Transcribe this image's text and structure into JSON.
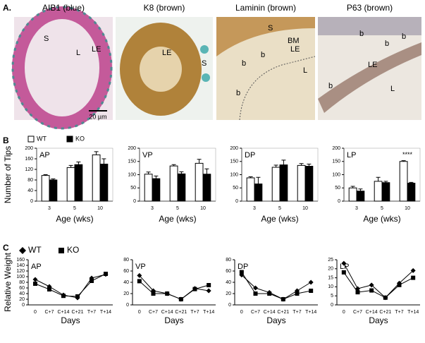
{
  "figure": {
    "panels": [
      "A.",
      "B",
      "C"
    ]
  },
  "panel_a": {
    "images": [
      {
        "title": "AIB1 (blue)",
        "labels": [
          "S",
          "L",
          "LE"
        ]
      },
      {
        "title": "K8 (brown)",
        "labels": [
          "LE",
          "S"
        ]
      },
      {
        "title": "Laminin (brown)",
        "labels": [
          "S",
          "BM",
          "LE",
          "b",
          "b",
          "b",
          "L"
        ]
      },
      {
        "title": "P63 (brown)",
        "labels": [
          "b",
          "b",
          "b",
          "LE",
          "L",
          "b"
        ]
      }
    ],
    "scale_bar": "20 µm"
  },
  "chart_data": [
    {
      "type": "bar",
      "title": "AP",
      "categories": [
        "3",
        "5",
        "10"
      ],
      "ylabel": "Number of Tips",
      "xlabel": "Age (wks)",
      "legend": "top",
      "ylim": [
        0,
        200
      ],
      "yticks": [
        0,
        40,
        80,
        120,
        160,
        200
      ],
      "series": [
        {
          "name": "WT",
          "color": "#ffffff",
          "values": [
            97,
            127,
            175
          ],
          "errors": [
            3,
            8,
            12
          ]
        },
        {
          "name": "KO",
          "color": "#000000",
          "values": [
            80,
            138,
            140
          ],
          "errors": [
            4,
            10,
            20
          ]
        }
      ]
    },
    {
      "type": "bar",
      "title": "VP",
      "categories": [
        "3",
        "5",
        "10"
      ],
      "xlabel": "Age (wks)",
      "ylim": [
        0,
        200
      ],
      "yticks": [
        0,
        50,
        100,
        150,
        200
      ],
      "series": [
        {
          "color": "#ffffff",
          "values": [
            102,
            133,
            143
          ],
          "errors": [
            8,
            5,
            15
          ]
        },
        {
          "color": "#000000",
          "values": [
            85,
            103,
            102
          ],
          "errors": [
            10,
            8,
            20
          ]
        }
      ]
    },
    {
      "type": "bar",
      "title": "DP",
      "categories": [
        "3",
        "5",
        "10"
      ],
      "xlabel": "Age (wks)",
      "ylim": [
        0,
        200
      ],
      "yticks": [
        0,
        50,
        100,
        150,
        200
      ],
      "series": [
        {
          "color": "#ffffff",
          "values": [
            88,
            128,
            135
          ],
          "errors": [
            4,
            8,
            7
          ]
        },
        {
          "color": "#000000",
          "values": [
            65,
            137,
            132
          ],
          "errors": [
            25,
            18,
            8
          ]
        }
      ]
    },
    {
      "type": "bar",
      "title": "LP",
      "categories": [
        "3",
        "5",
        "10"
      ],
      "xlabel": "Age (wks)",
      "ylim": [
        0,
        200
      ],
      "yticks": [
        0,
        50,
        100,
        150,
        200
      ],
      "annotation": "****",
      "series": [
        {
          "color": "#ffffff",
          "values": [
            50,
            75,
            150
          ],
          "errors": [
            6,
            15,
            3
          ]
        },
        {
          "color": "#000000",
          "values": [
            38,
            70,
            68
          ],
          "errors": [
            8,
            5,
            3
          ]
        }
      ]
    },
    {
      "type": "line",
      "title": "AP",
      "categories": [
        "0",
        "C+7",
        "C+14",
        "C+21",
        "T+7",
        "T+14"
      ],
      "ylabel": "Relative Weight",
      "xlabel": "Days",
      "legend": "top",
      "ylim": [
        0,
        160
      ],
      "yticks": [
        0,
        20,
        40,
        60,
        80,
        100,
        120,
        140,
        160
      ],
      "series": [
        {
          "name": "WT",
          "color": "#000000",
          "marker": "diamond",
          "values": [
            90,
            65,
            35,
            25,
            95,
            108
          ]
        },
        {
          "name": "KO",
          "color": "#000000",
          "marker": "square",
          "values": [
            75,
            55,
            32,
            30,
            85,
            110
          ]
        }
      ]
    },
    {
      "type": "line",
      "title": "VP",
      "categories": [
        "0",
        "C+7",
        "C+14",
        "C+21",
        "T+7",
        "T+14"
      ],
      "xlabel": "Days",
      "ylim": [
        0,
        80
      ],
      "yticks": [
        0,
        20,
        40,
        60,
        80
      ],
      "series": [
        {
          "color": "#000000",
          "marker": "diamond",
          "values": [
            52,
            25,
            20,
            10,
            29,
            25
          ]
        },
        {
          "color": "#000000",
          "marker": "square",
          "values": [
            42,
            20,
            20,
            10,
            28,
            35
          ]
        }
      ]
    },
    {
      "type": "line",
      "title": "DP",
      "categories": [
        "0",
        "C+7",
        "C+14",
        "C+21",
        "T+7",
        "T+14"
      ],
      "xlabel": "Days",
      "ylim": [
        0,
        80
      ],
      "yticks": [
        0,
        20,
        40,
        60,
        80
      ],
      "series": [
        {
          "color": "#000000",
          "marker": "diamond",
          "values": [
            53,
            30,
            22,
            10,
            25,
            40
          ]
        },
        {
          "color": "#000000",
          "marker": "square",
          "values": [
            58,
            20,
            20,
            10,
            20,
            25
          ]
        }
      ]
    },
    {
      "type": "line",
      "title": "LP",
      "categories": [
        "0",
        "C+7",
        "C+14",
        "C+21",
        "T+7",
        "T+14"
      ],
      "xlabel": "Days",
      "ylim": [
        0,
        25
      ],
      "yticks": [
        0,
        5,
        10,
        15,
        20,
        25
      ],
      "series": [
        {
          "color": "#000000",
          "marker": "diamond",
          "values": [
            23,
            9,
            11,
            4,
            12,
            19
          ]
        },
        {
          "color": "#000000",
          "marker": "square",
          "values": [
            18,
            7,
            8,
            4,
            11,
            15
          ]
        }
      ]
    }
  ]
}
